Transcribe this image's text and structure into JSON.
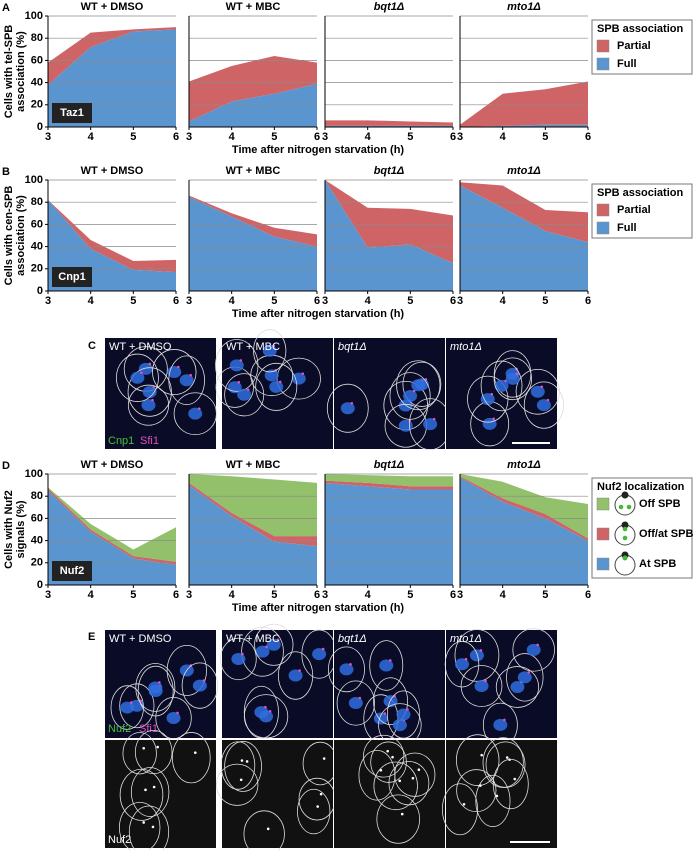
{
  "chart_data": [
    {
      "type": "stacked_area",
      "title": "WT + DMSO",
      "ylabel": [
        "Cells with tel-SPB",
        "association (%)"
      ],
      "xlabel": "Time after nitrogen starvation (h)",
      "annotation": "Taz1",
      "x": [
        3,
        4,
        5,
        6
      ],
      "xlim": [
        3,
        6
      ],
      "xticks": [
        3,
        4,
        5,
        6
      ],
      "ylim": [
        0,
        100
      ],
      "yticks": [
        0,
        20,
        40,
        60,
        80,
        100
      ],
      "grid": true,
      "series": [
        {
          "name": "Full",
          "color": "#5b95cf",
          "values": [
            38,
            72,
            86,
            88
          ]
        },
        {
          "name": "Partial",
          "color": "#cf6466",
          "values": [
            20,
            13,
            2,
            2
          ]
        }
      ]
    },
    {
      "type": "stacked_area",
      "title": "WT + MBC",
      "x": [
        3,
        4,
        5,
        6
      ],
      "xlim": [
        3,
        6
      ],
      "xticks": [
        3,
        4,
        5,
        6
      ],
      "ylim": [
        0,
        100
      ],
      "yticks": [
        0,
        20,
        40,
        60,
        80,
        100
      ],
      "grid": true,
      "series": [
        {
          "name": "Full",
          "color": "#5b95cf",
          "values": [
            5,
            23,
            30,
            39
          ]
        },
        {
          "name": "Partial",
          "color": "#cf6466",
          "values": [
            36,
            32,
            34,
            19
          ]
        }
      ]
    },
    {
      "type": "stacked_area",
      "title": "bqt1Δ",
      "title_italic": true,
      "x": [
        3,
        4,
        5,
        6
      ],
      "xlim": [
        3,
        6
      ],
      "xticks": [
        3,
        4,
        5,
        6
      ],
      "ylim": [
        0,
        100
      ],
      "yticks": [
        0,
        20,
        40,
        60,
        80,
        100
      ],
      "grid": true,
      "series": [
        {
          "name": "Full",
          "color": "#5b95cf",
          "values": [
            1,
            1,
            1,
            1
          ]
        },
        {
          "name": "Partial",
          "color": "#cf6466",
          "values": [
            5,
            5,
            4,
            3
          ]
        }
      ]
    },
    {
      "type": "stacked_area",
      "title": "mto1Δ",
      "title_italic": true,
      "legend_title": "SPB association",
      "x": [
        3,
        4,
        5,
        6
      ],
      "xlim": [
        3,
        6
      ],
      "xticks": [
        3,
        4,
        5,
        6
      ],
      "ylim": [
        0,
        100
      ],
      "yticks": [
        0,
        20,
        40,
        60,
        80,
        100
      ],
      "grid": true,
      "series": [
        {
          "name": "Full",
          "color": "#5b95cf",
          "values": [
            0,
            1,
            2,
            2
          ]
        },
        {
          "name": "Partial",
          "color": "#cf6466",
          "values": [
            2,
            29,
            32,
            39
          ]
        }
      ]
    },
    {
      "type": "stacked_area",
      "title": "WT + DMSO",
      "ylabel": [
        "Cells with cen-SPB",
        "association (%)"
      ],
      "xlabel": "Time after nitrogen starvation (h)",
      "annotation": "Cnp1",
      "x": [
        3,
        4,
        5,
        6
      ],
      "xlim": [
        3,
        6
      ],
      "xticks": [
        3,
        4,
        5,
        6
      ],
      "ylim": [
        0,
        100
      ],
      "yticks": [
        0,
        20,
        40,
        60,
        80,
        100
      ],
      "grid": true,
      "series": [
        {
          "name": "Full",
          "color": "#5b95cf",
          "values": [
            82,
            38,
            19,
            17
          ]
        },
        {
          "name": "Partial",
          "color": "#cf6466",
          "values": [
            0,
            8,
            8,
            11
          ]
        }
      ]
    },
    {
      "type": "stacked_area",
      "title": "WT + MBC",
      "x": [
        3,
        4,
        5,
        6
      ],
      "xlim": [
        3,
        6
      ],
      "xticks": [
        3,
        4,
        5,
        6
      ],
      "ylim": [
        0,
        100
      ],
      "yticks": [
        0,
        20,
        40,
        60,
        80,
        100
      ],
      "grid": true,
      "series": [
        {
          "name": "Full",
          "color": "#5b95cf",
          "values": [
            85,
            67,
            49,
            40
          ]
        },
        {
          "name": "Partial",
          "color": "#cf6466",
          "values": [
            1,
            3,
            8,
            11
          ]
        }
      ]
    },
    {
      "type": "stacked_area",
      "title": "bqt1Δ",
      "title_italic": true,
      "x": [
        3,
        4,
        5,
        6
      ],
      "xlim": [
        3,
        6
      ],
      "xticks": [
        3,
        4,
        5,
        6
      ],
      "ylim": [
        0,
        100
      ],
      "yticks": [
        0,
        20,
        40,
        60,
        80,
        100
      ],
      "grid": true,
      "series": [
        {
          "name": "Full",
          "color": "#5b95cf",
          "values": [
            100,
            39,
            42,
            25
          ]
        },
        {
          "name": "Partial",
          "color": "#cf6466",
          "values": [
            0,
            36,
            32,
            43
          ]
        }
      ]
    },
    {
      "type": "stacked_area",
      "title": "mto1Δ",
      "title_italic": true,
      "legend_title": "SPB association",
      "x": [
        3,
        4,
        5,
        6
      ],
      "xlim": [
        3,
        6
      ],
      "xticks": [
        3,
        4,
        5,
        6
      ],
      "ylim": [
        0,
        100
      ],
      "yticks": [
        0,
        20,
        40,
        60,
        80,
        100
      ],
      "grid": true,
      "series": [
        {
          "name": "Full",
          "color": "#5b95cf",
          "values": [
            95,
            75,
            54,
            44
          ]
        },
        {
          "name": "Partial",
          "color": "#cf6466",
          "values": [
            3,
            20,
            19,
            27
          ]
        }
      ]
    },
    {
      "type": "stacked_area",
      "title": "WT + DMSO",
      "ylabel": [
        "Cells with Nuf2",
        "signals (%)"
      ],
      "xlabel": "Time after nitrogen starvation (h)",
      "annotation": "Nuf2",
      "x": [
        3,
        4,
        5,
        6
      ],
      "xlim": [
        3,
        6
      ],
      "xticks": [
        3,
        4,
        5,
        6
      ],
      "ylim": [
        0,
        100
      ],
      "yticks": [
        0,
        20,
        40,
        60,
        80,
        100
      ],
      "grid": true,
      "series": [
        {
          "name": "At SPB",
          "color": "#5b95cf",
          "values": [
            85,
            48,
            24,
            18
          ]
        },
        {
          "name": "Off/at SPB",
          "color": "#cf6466",
          "values": [
            2,
            2,
            2,
            3
          ]
        },
        {
          "name": "Off SPB",
          "color": "#93c06a",
          "values": [
            1,
            5,
            6,
            31
          ]
        }
      ]
    },
    {
      "type": "stacked_area",
      "title": "WT + MBC",
      "x": [
        3,
        4,
        5,
        6
      ],
      "xlim": [
        3,
        6
      ],
      "xticks": [
        3,
        4,
        5,
        6
      ],
      "ylim": [
        0,
        100
      ],
      "yticks": [
        0,
        20,
        40,
        60,
        80,
        100
      ],
      "grid": true,
      "series": [
        {
          "name": "At SPB",
          "color": "#5b95cf",
          "values": [
            90,
            62,
            39,
            35
          ]
        },
        {
          "name": "Off/at SPB",
          "color": "#cf6466",
          "values": [
            2,
            3,
            5,
            9
          ]
        },
        {
          "name": "Off SPB",
          "color": "#93c06a",
          "values": [
            8,
            33,
            51,
            48
          ]
        }
      ]
    },
    {
      "type": "stacked_area",
      "title": "bqt1Δ",
      "title_italic": true,
      "x": [
        3,
        4,
        5,
        6
      ],
      "xlim": [
        3,
        6
      ],
      "xticks": [
        3,
        4,
        5,
        6
      ],
      "ylim": [
        0,
        100
      ],
      "yticks": [
        0,
        20,
        40,
        60,
        80,
        100
      ],
      "grid": true,
      "series": [
        {
          "name": "At SPB",
          "color": "#5b95cf",
          "values": [
            92,
            89,
            86,
            86
          ]
        },
        {
          "name": "Off/at SPB",
          "color": "#cf6466",
          "values": [
            2,
            3,
            3,
            3
          ]
        },
        {
          "name": "Off SPB",
          "color": "#93c06a",
          "values": [
            6,
            7,
            9,
            9
          ]
        }
      ]
    },
    {
      "type": "stacked_area",
      "title": "mto1Δ",
      "title_italic": true,
      "legend_title": "Nuf2 localization",
      "x": [
        3,
        4,
        5,
        6
      ],
      "xlim": [
        3,
        6
      ],
      "xticks": [
        3,
        4,
        5,
        6
      ],
      "ylim": [
        0,
        100
      ],
      "yticks": [
        0,
        20,
        40,
        60,
        80,
        100
      ],
      "grid": true,
      "series": [
        {
          "name": "At SPB",
          "color": "#5b95cf",
          "values": [
            97,
            75,
            60,
            40
          ]
        },
        {
          "name": "Off/at SPB",
          "color": "#cf6466",
          "values": [
            1,
            3,
            4,
            2
          ]
        },
        {
          "name": "Off SPB",
          "color": "#93c06a",
          "values": [
            2,
            15,
            15,
            31
          ]
        }
      ]
    }
  ],
  "figure": {
    "panel_labels": [
      "A",
      "B",
      "C",
      "D",
      "E"
    ],
    "panel_c": {
      "labels": [
        "WT + DMSO",
        "WT + MBC",
        "bqt1Δ",
        "mto1Δ"
      ],
      "stain": [
        "Cnp1",
        "Sfi1"
      ]
    },
    "panel_e": {
      "labels": [
        "WT + DMSO",
        "WT + MBC",
        "bqt1Δ",
        "mto1Δ"
      ],
      "stain_merge": [
        "Nuf2",
        "Sfi1"
      ],
      "stain_gray": "Nuf2"
    }
  }
}
